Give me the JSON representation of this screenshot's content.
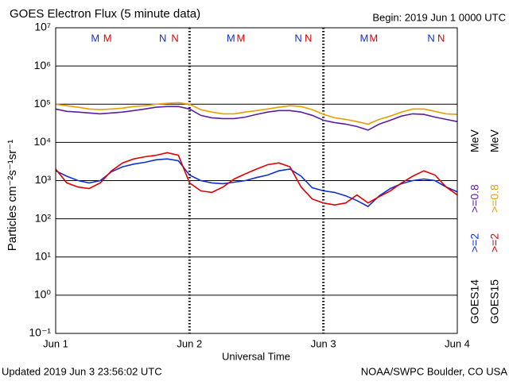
{
  "chart_data": {
    "type": "line",
    "title": "GOES Electron Flux (5 minute data)",
    "subtitle": "Begin: 2019 Jun 1 0000 UTC",
    "x_label": "Universal Time",
    "y_label": "Particles cm⁻²s⁻¹sr⁻¹",
    "footer_left": "Updated 2019 Jun  3 23:56:02 UTC",
    "footer_right": "NOAA/SWPC Boulder, CO USA",
    "log_scale": true,
    "grid": true,
    "legend_unit": "MeV",
    "threshold": 1000,
    "xlim": [
      0,
      72
    ],
    "xticks": [
      {
        "value": 0,
        "label": "Jun 1"
      },
      {
        "value": 24,
        "label": "Jun 2"
      },
      {
        "value": 48,
        "label": "Jun 3"
      },
      {
        "value": 72,
        "label": "Jun 4"
      }
    ],
    "ylim": [
      0.1,
      10000000
    ],
    "yticks": [
      {
        "value": 0.1,
        "label": "10⁻¹"
      },
      {
        "value": 1,
        "label": "10⁰"
      },
      {
        "value": 10,
        "label": "10¹"
      },
      {
        "value": 100,
        "label": "10²"
      },
      {
        "value": 1000,
        "label": "10³"
      },
      {
        "value": 10000,
        "label": "10⁴"
      },
      {
        "value": 100000,
        "label": "10⁵"
      },
      {
        "value": 1000000,
        "label": "10⁶"
      },
      {
        "value": 10000000,
        "label": "10⁷"
      }
    ],
    "markers": [
      {
        "label": "M",
        "x": 7.1,
        "color": "#1030d0"
      },
      {
        "label": "M",
        "x": 9.3,
        "color": "#e00000"
      },
      {
        "label": "N",
        "x": 19.2,
        "color": "#1030d0"
      },
      {
        "label": "N",
        "x": 21.4,
        "color": "#e00000"
      },
      {
        "label": "M",
        "x": 31.4,
        "color": "#1030d0"
      },
      {
        "label": "M",
        "x": 33.2,
        "color": "#e00000"
      },
      {
        "label": "N",
        "x": 43.5,
        "color": "#1030d0"
      },
      {
        "label": "N",
        "x": 45.3,
        "color": "#e00000"
      },
      {
        "label": "M",
        "x": 55.3,
        "color": "#1030d0"
      },
      {
        "label": "M",
        "x": 57.0,
        "color": "#e00000"
      },
      {
        "label": "N",
        "x": 67.3,
        "color": "#1030d0"
      },
      {
        "label": "N",
        "x": 69.1,
        "color": "#e00000"
      }
    ],
    "x": [
      0,
      2,
      4,
      6,
      8,
      10,
      12,
      14,
      16,
      18,
      20,
      22,
      24,
      26,
      28,
      30,
      32,
      34,
      36,
      38,
      40,
      42,
      44,
      46,
      48,
      50,
      52,
      54,
      56,
      58,
      60,
      62,
      64,
      66,
      68,
      70,
      72
    ],
    "series": [
      {
        "name": ">=2",
        "satellite": "GOES14",
        "color": "#1030d0",
        "values": [
          1800,
          1300,
          1000,
          870,
          1000,
          1700,
          2300,
          2700,
          3000,
          3500,
          3700,
          3300,
          1400,
          1000,
          870,
          830,
          910,
          1000,
          1200,
          1400,
          1800,
          2000,
          1300,
          650,
          540,
          490,
          400,
          300,
          210,
          400,
          620,
          830,
          1000,
          1100,
          1000,
          680,
          510
        ]
      },
      {
        "name": ">=0.8",
        "satellite": "GOES14",
        "color": "#5a1f9e",
        "values": [
          75000,
          65000,
          62000,
          59000,
          56000,
          59000,
          62000,
          68000,
          75000,
          83000,
          87000,
          87000,
          75000,
          51000,
          44000,
          42000,
          42000,
          46000,
          54000,
          62000,
          68000,
          68000,
          62000,
          51000,
          38000,
          33000,
          30000,
          26000,
          21000,
          30000,
          38000,
          49000,
          56000,
          54000,
          46000,
          40000,
          35000
        ]
      },
      {
        "name": ">=2",
        "satellite": "GOES15",
        "color": "#e00000",
        "values": [
          2000,
          870,
          680,
          620,
          870,
          1800,
          2900,
          3700,
          4200,
          4600,
          5400,
          4600,
          870,
          540,
          490,
          680,
          1100,
          1500,
          2000,
          2600,
          2900,
          2300,
          680,
          330,
          260,
          230,
          260,
          420,
          260,
          380,
          540,
          870,
          1300,
          1800,
          1400,
          680,
          420
        ]
      },
      {
        "name": ">=0.8",
        "satellite": "GOES15",
        "color": "#e8a000",
        "values": [
          100000,
          91000,
          83000,
          75000,
          72000,
          75000,
          79000,
          87000,
          91000,
          100000,
          105000,
          110000,
          100000,
          72000,
          62000,
          56000,
          56000,
          62000,
          68000,
          75000,
          83000,
          91000,
          87000,
          72000,
          54000,
          44000,
          40000,
          35000,
          30000,
          40000,
          49000,
          62000,
          75000,
          75000,
          65000,
          56000,
          54000
        ]
      }
    ]
  }
}
